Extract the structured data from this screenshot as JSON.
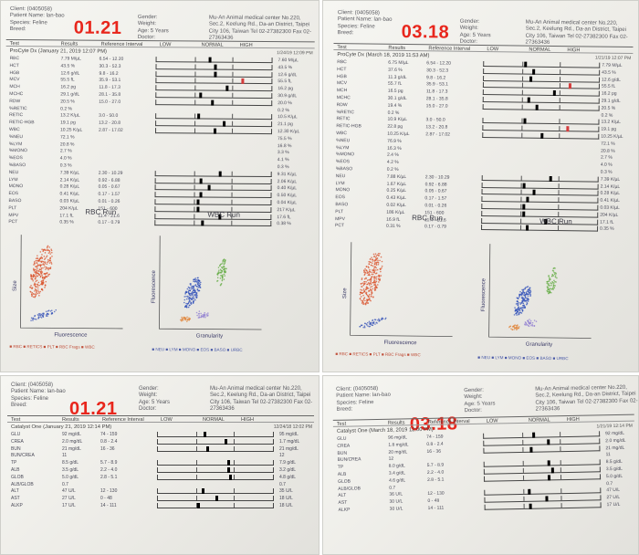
{
  "header": {
    "client": "Client: (0405058)",
    "patient": "Patient Name: lan-bao",
    "species": "Species: Feline",
    "breed": "Breed:",
    "gender": "Gender:",
    "weight": "Weight:",
    "age": "Age: 5 Years",
    "doctor": "Doctor:",
    "clinic": "Mu-An Animal medical center No.220, Sec.2, Keelung Rd., Da-an District, Taipei City 106, Taiwan Tel 02-27382300 Fax 02-27363436"
  },
  "columns": {
    "test": "Test",
    "results": "Results",
    "reference": "Reference Interval",
    "low": "LOW",
    "normal": "NORMAL",
    "high": "HIGH"
  },
  "panels": [
    {
      "stamp": "01.21",
      "section_title": "ProCyte Dx (January 21, 2019 12:07 PM)",
      "section_date": "1/24/19 12:09 PM",
      "rows": [
        {
          "test": "RBC",
          "result": "7.79 M/µL",
          "ref": "6.54 - 12.20",
          "marker": 0.45,
          "val": "7.60 M/µL",
          "hi": false
        },
        {
          "test": "HCT",
          "result": "43.5 %",
          "ref": "30.3 - 52.3",
          "marker": 0.5,
          "val": "43.5 %",
          "hi": false
        },
        {
          "test": "HGB",
          "result": "12.6 g/dL",
          "ref": "9.8 - 16.2",
          "marker": 0.5,
          "val": "12.6 g/dL",
          "hi": false
        },
        {
          "test": "MCV",
          "result": "55.5 fL",
          "ref": "35.9 - 53.1",
          "marker": 0.74,
          "val": "55.5 fL",
          "hi": true
        },
        {
          "test": "MCH",
          "result": "16.2 pg",
          "ref": "11.8 - 17.3",
          "marker": 0.6,
          "val": "16.2 pg",
          "hi": false
        },
        {
          "test": "MCHC",
          "result": "29.1 g/dL",
          "ref": "28.1 - 35.8",
          "marker": 0.37,
          "val": "30.9 g/dL",
          "hi": false
        },
        {
          "test": "RDW",
          "result": "20.5 %",
          "ref": "15.0 - 27.0",
          "marker": 0.48,
          "val": "20.0 %",
          "hi": false
        },
        {
          "test": "%RETIC",
          "result": "0.2 %",
          "ref": "",
          "marker": null,
          "val": "0.2 %",
          "hi": false
        },
        {
          "test": "RETIC",
          "result": "13.2 K/µL",
          "ref": "3.0 - 50.0",
          "marker": 0.36,
          "val": "10.5 K/µL",
          "hi": false
        },
        {
          "test": "RETIC-HGB",
          "result": "19.1 pg",
          "ref": "13.2 - 20.8",
          "marker": 0.58,
          "val": "21.1 pg",
          "hi": false
        },
        {
          "test": "WBC",
          "result": "10.25 K/µL",
          "ref": "2.87 - 17.02",
          "marker": 0.5,
          "val": "12.30 K/µL",
          "hi": false
        },
        {
          "test": "%NEU",
          "result": "72.1 %",
          "ref": "",
          "marker": null,
          "val": "75.5 %",
          "hi": false
        },
        {
          "test": "%LYM",
          "result": "20.8 %",
          "ref": "",
          "marker": null,
          "val": "16.8 %",
          "hi": false
        },
        {
          "test": "%MONO",
          "result": "2.7 %",
          "ref": "",
          "marker": null,
          "val": "3.3 %",
          "hi": false
        },
        {
          "test": "%EOS",
          "result": "4.0 %",
          "ref": "",
          "marker": null,
          "val": "4.1 %",
          "hi": false
        },
        {
          "test": "%BASO",
          "result": "0.3 %",
          "ref": "",
          "marker": null,
          "val": "0.3 %",
          "hi": false
        },
        {
          "test": "NEU",
          "result": "7.39 K/µL",
          "ref": "2.30 - 10.29",
          "marker": 0.55,
          "val": "9.31 K/µL",
          "hi": false
        },
        {
          "test": "LYM",
          "result": "2.14 K/µL",
          "ref": "0.92 - 6.88",
          "marker": 0.38,
          "val": "2.06 K/µL",
          "hi": false
        },
        {
          "test": "MONO",
          "result": "0.28 K/µL",
          "ref": "0.05 - 0.67",
          "marker": 0.45,
          "val": "0.40 K/µL",
          "hi": false
        },
        {
          "test": "EOS",
          "result": "0.41 K/µL",
          "ref": "0.17 - 1.57",
          "marker": 0.38,
          "val": "0.50 K/µL",
          "hi": false
        },
        {
          "test": "BASO",
          "result": "0.03 K/µL",
          "ref": "0.01 - 0.26",
          "marker": 0.36,
          "val": "0.04 K/µL",
          "hi": false
        },
        {
          "test": "PLT",
          "result": "204 K/µL",
          "ref": "151 - 600",
          "marker": 0.36,
          "val": "217 K/µL",
          "hi": false
        },
        {
          "test": "MPV",
          "result": "17.1 fL",
          "ref": "11.4 - 21.6",
          "marker": 0.55,
          "val": "17.6 fL",
          "hi": false
        },
        {
          "test": "PCT",
          "result": "0.35 %",
          "ref": "0.17 - 0.79",
          "marker": 0.4,
          "val": "0.38 %",
          "hi": false
        }
      ],
      "rbc_run": "RBC Run",
      "wbc_run": "WBC Run",
      "y_axis_rbc": "Size",
      "x_axis_rbc": "Fluorescence",
      "y_axis_wbc": "Fluorescence",
      "x_axis_wbc": "Granularity",
      "legend_rbc": "■ RBC  ■ RETICS  ■ PLT  ■ RBC Frags  ■ WBC",
      "legend_wbc": "■ NEU  ■ LYM  ■ MONO  ■ EOS  ■ BASO  ■ URBC"
    },
    {
      "stamp": "03.18",
      "section_title": "ProCyte Dx (March 18, 2019 11:53 AM)",
      "section_date": "1/21/19 12:07 PM",
      "rows": [
        {
          "test": "RBC",
          "result": "6.75 M/µL",
          "ref": "6.54 - 12.20",
          "marker": 0.35,
          "val": "7.79 M/µL",
          "hi": false
        },
        {
          "test": "HCT",
          "result": "37.6 %",
          "ref": "30.3 - 52.3",
          "marker": 0.42,
          "val": "43.5 %",
          "hi": false
        },
        {
          "test": "HGB",
          "result": "11.3 g/dL",
          "ref": "9.8 - 16.2",
          "marker": 0.4,
          "val": "12.6 g/dL",
          "hi": false
        },
        {
          "test": "MCV",
          "result": "55.7 fL",
          "ref": "35.9 - 53.1",
          "marker": 0.74,
          "val": "55.5 fL",
          "hi": true
        },
        {
          "test": "MCH",
          "result": "16.5 pg",
          "ref": "11.8 - 17.3",
          "marker": 0.6,
          "val": "16.2 pg",
          "hi": false
        },
        {
          "test": "MCHC",
          "result": "30.1 g/dL",
          "ref": "28.1 - 35.8",
          "marker": 0.38,
          "val": "29.1 g/dL",
          "hi": false
        },
        {
          "test": "RDW",
          "result": "19.4 %",
          "ref": "15.0 - 27.0",
          "marker": 0.45,
          "val": "20.5 %",
          "hi": false
        },
        {
          "test": "%RETIC",
          "result": "0.2 %",
          "ref": "",
          "marker": null,
          "val": "0.2 %",
          "hi": false
        },
        {
          "test": "RETIC",
          "result": "10.9 K/µL",
          "ref": "3.0 - 50.0",
          "marker": 0.35,
          "val": "13.2 K/µL",
          "hi": false
        },
        {
          "test": "RETIC-HGB",
          "result": "22.8 pg",
          "ref": "13.2 - 20.8",
          "marker": 0.72,
          "val": "19.1 pg",
          "hi": true
        },
        {
          "test": "WBC",
          "result": "10.25 K/µL",
          "ref": "2.87 - 17.02",
          "marker": 0.5,
          "val": "10.25 K/µL",
          "hi": false
        },
        {
          "test": "%NEU",
          "result": "76.9 %",
          "ref": "",
          "marker": null,
          "val": "72.1 %",
          "hi": false
        },
        {
          "test": "%LYM",
          "result": "16.3 %",
          "ref": "",
          "marker": null,
          "val": "20.8 %",
          "hi": false
        },
        {
          "test": "%MONO",
          "result": "2.4 %",
          "ref": "",
          "marker": null,
          "val": "2.7 %",
          "hi": false
        },
        {
          "test": "%EOS",
          "result": "4.2 %",
          "ref": "",
          "marker": null,
          "val": "4.0 %",
          "hi": false
        },
        {
          "test": "%BASO",
          "result": "0.2 %",
          "ref": "",
          "marker": null,
          "val": "0.3 %",
          "hi": false
        },
        {
          "test": "NEU",
          "result": "7.88 K/µL",
          "ref": "2.30 - 10.29",
          "marker": 0.58,
          "val": "7.39 K/µL",
          "hi": false
        },
        {
          "test": "LYM",
          "result": "1.67 K/µL",
          "ref": "0.92 - 6.88",
          "marker": 0.35,
          "val": "2.14 K/µL",
          "hi": false
        },
        {
          "test": "MONO",
          "result": "0.25 K/µL",
          "ref": "0.05 - 0.67",
          "marker": 0.44,
          "val": "0.28 K/µL",
          "hi": false
        },
        {
          "test": "EOS",
          "result": "0.43 K/µL",
          "ref": "0.17 - 1.57",
          "marker": 0.38,
          "val": "0.41 K/µL",
          "hi": false
        },
        {
          "test": "BASO",
          "result": "0.02 K/µL",
          "ref": "0.01 - 0.26",
          "marker": 0.35,
          "val": "0.03 K/µL",
          "hi": false
        },
        {
          "test": "PLT",
          "result": "186 K/µL",
          "ref": "151 - 600",
          "marker": 0.35,
          "val": "204 K/µL",
          "hi": false
        },
        {
          "test": "MPV",
          "result": "16.9 fL",
          "ref": "11.4 - 21.6",
          "marker": 0.54,
          "val": "17.1 fL",
          "hi": false
        },
        {
          "test": "PCT",
          "result": "0.31 %",
          "ref": "0.17 - 0.79",
          "marker": 0.38,
          "val": "0.35 %",
          "hi": false
        }
      ],
      "rbc_run": "RBC Run",
      "wbc_run": "WBC Run",
      "y_axis_rbc": "Size",
      "x_axis_rbc": "Fluorescence",
      "y_axis_wbc": "Fluorescence",
      "x_axis_wbc": "Granularity",
      "legend_rbc": "■ RBC  ■ RETICS  ■ PLT  ■ RBC Frags  ■ WBC",
      "legend_wbc": "■ NEU  ■ LYM  ■ MONO  ■ EOS  ■ BASO  ■ URBC"
    },
    {
      "stamp": "01.21",
      "section_title": "Catalyst One (January 21, 2019 12:14 PM)",
      "section_date": "12/24/18 12:02 PM",
      "rows": [
        {
          "test": "GLU",
          "result": "92 mg/dL",
          "ref": "74 - 159",
          "marker": 0.4,
          "val": "95 mg/dL",
          "hi": false
        },
        {
          "test": "CREA",
          "result": "2.0 mg/dL",
          "ref": "0.8 - 2.4",
          "marker": 0.58,
          "val": "1.7 mg/dL",
          "hi": false
        },
        {
          "test": "BUN",
          "result": "21 mg/dL",
          "ref": "16 - 36",
          "marker": 0.42,
          "val": "21 mg/dL",
          "hi": false
        },
        {
          "test": "BUN/CREA",
          "result": "11",
          "ref": "",
          "marker": null,
          "val": "12",
          "hi": false
        },
        {
          "test": "TP",
          "result": "8.5 g/dL",
          "ref": "5.7 - 8.9",
          "marker": 0.6,
          "val": "7.9 g/dL",
          "hi": false
        },
        {
          "test": "ALB",
          "result": "3.5 g/dL",
          "ref": "2.2 - 4.0",
          "marker": 0.6,
          "val": "3.2 g/dL",
          "hi": false
        },
        {
          "test": "GLOB",
          "result": "5.0 g/dL",
          "ref": "2.8 - 5.1",
          "marker": 0.62,
          "val": "4.8 g/dL",
          "hi": false
        },
        {
          "test": "ALB/GLOB",
          "result": "0.7",
          "ref": "",
          "marker": null,
          "val": "0.7",
          "hi": false
        },
        {
          "test": "ALT",
          "result": "47 U/L",
          "ref": "12 - 130",
          "marker": 0.38,
          "val": "35 U/L",
          "hi": false
        },
        {
          "test": "AST",
          "result": "27 U/L",
          "ref": "0 - 48",
          "marker": 0.5,
          "val": "18 U/L",
          "hi": false
        },
        {
          "test": "ALKP",
          "result": "17 U/L",
          "ref": "14 - 111",
          "marker": 0.34,
          "val": "18 U/L",
          "hi": false
        }
      ]
    },
    {
      "stamp": "03.18",
      "section_title": "Catalyst One (March 18, 2019 12:00 PM)",
      "section_date": "1/21/19 12:14 PM",
      "rows": [
        {
          "test": "GLU",
          "result": "96 mg/dL",
          "ref": "74 - 159",
          "marker": 0.42,
          "val": "92 mg/dL",
          "hi": false
        },
        {
          "test": "CREA",
          "result": "1.8 mg/dL",
          "ref": "0.8 - 2.4",
          "marker": 0.55,
          "val": "2.0 mg/dL",
          "hi": false
        },
        {
          "test": "BUN",
          "result": "20 mg/dL",
          "ref": "16 - 36",
          "marker": 0.4,
          "val": "21 mg/dL",
          "hi": false
        },
        {
          "test": "BUN/CREA",
          "result": "12",
          "ref": "",
          "marker": null,
          "val": "11",
          "hi": false
        },
        {
          "test": "TP",
          "result": "8.0 g/dL",
          "ref": "5.7 - 8.9",
          "marker": 0.55,
          "val": "8.5 g/dL",
          "hi": false
        },
        {
          "test": "ALB",
          "result": "3.4 g/dL",
          "ref": "2.2 - 4.0",
          "marker": 0.58,
          "val": "3.5 g/dL",
          "hi": false
        },
        {
          "test": "GLOB",
          "result": "4.6 g/dL",
          "ref": "2.8 - 5.1",
          "marker": 0.55,
          "val": "5.0 g/dL",
          "hi": false
        },
        {
          "test": "ALB/GLOB",
          "result": "0.7",
          "ref": "",
          "marker": null,
          "val": "0.7",
          "hi": false
        },
        {
          "test": "ALT",
          "result": "36 U/L",
          "ref": "12 - 130",
          "marker": 0.37,
          "val": "47 U/L",
          "hi": false
        },
        {
          "test": "AST",
          "result": "30 U/L",
          "ref": "0 - 48",
          "marker": 0.52,
          "val": "27 U/L",
          "hi": false
        },
        {
          "test": "ALKP",
          "result": "30 U/L",
          "ref": "14 - 111",
          "marker": 0.38,
          "val": "17 U/L",
          "hi": false
        }
      ]
    }
  ],
  "colors": {
    "stamp": "#e8261c",
    "rbc": "#d9502a",
    "retic": "#3a55b8",
    "neu": "#2f4fb8",
    "lym": "#8d7bd0",
    "mono": "#e0843a",
    "eos": "#5faa3e",
    "high_flag": "#d43c3c"
  }
}
